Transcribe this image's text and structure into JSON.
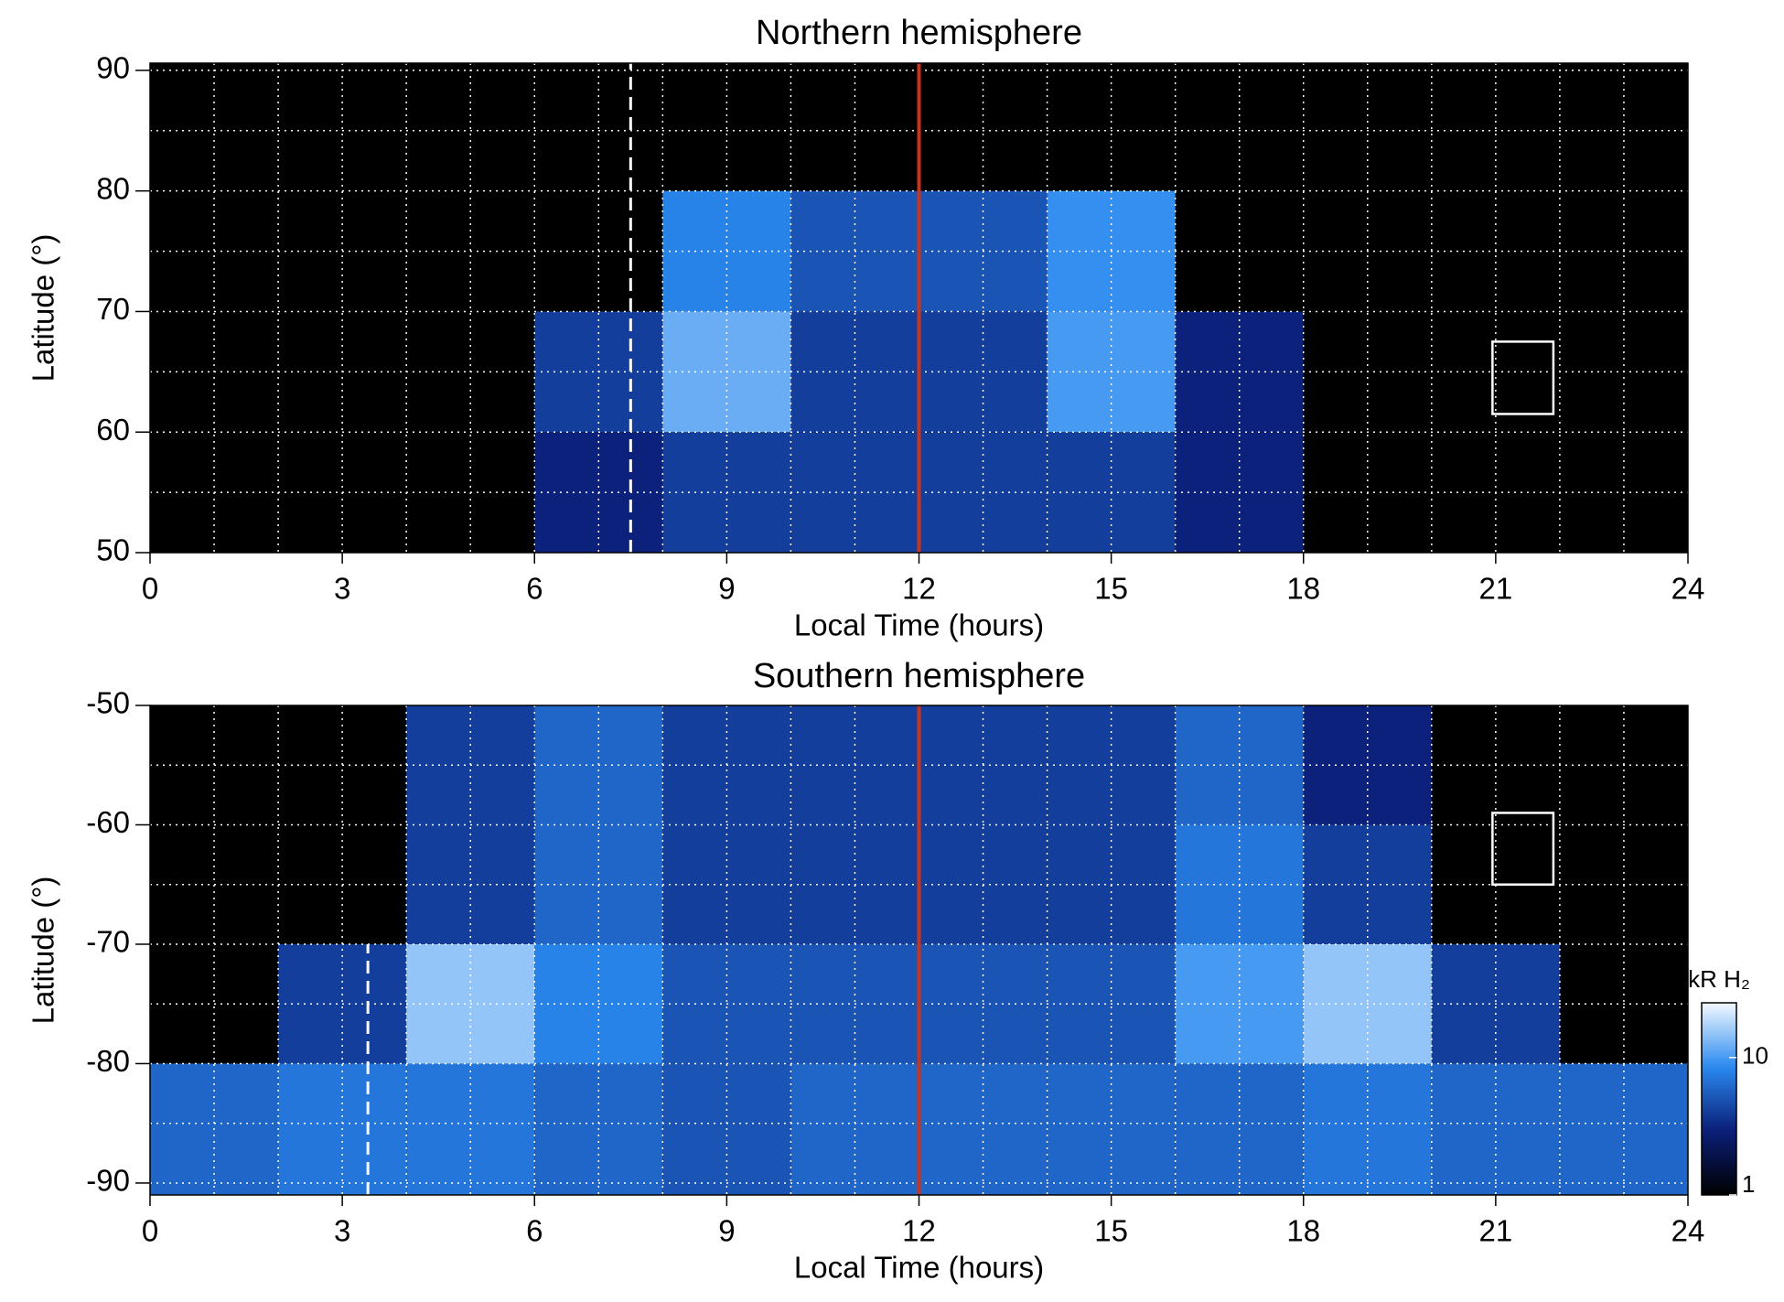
{
  "chart_data": [
    {
      "type": "heatmap",
      "title": "Northern hemisphere",
      "xlabel": "Local Time (hours)",
      "ylabel": "Latitude (°)",
      "xlim": [
        0,
        24
      ],
      "ylim": [
        50,
        90.6
      ],
      "xticks": [
        0,
        3,
        6,
        9,
        12,
        15,
        18,
        21,
        24
      ],
      "yticks": [
        50,
        60,
        70,
        80,
        90
      ],
      "xgridlines": [
        1,
        2,
        3,
        4,
        5,
        6,
        7,
        8,
        9,
        10,
        11,
        12,
        13,
        14,
        15,
        16,
        17,
        18,
        19,
        20,
        21,
        22,
        23
      ],
      "ygridlines": [
        55,
        60,
        65,
        70,
        75,
        80,
        85,
        90
      ],
      "xbins": [
        0,
        2,
        4,
        6,
        8,
        10,
        12,
        14,
        16,
        18,
        20,
        22,
        24
      ],
      "ybins": [
        50,
        60,
        70,
        80,
        90.6
      ],
      "z": [
        [
          null,
          null,
          null,
          3,
          4,
          4,
          4,
          4,
          3,
          null,
          null,
          null
        ],
        [
          null,
          null,
          null,
          4,
          12,
          4,
          4,
          10,
          3,
          null,
          null,
          null
        ],
        [
          null,
          null,
          null,
          null,
          8,
          5,
          5,
          9,
          null,
          null,
          null,
          null
        ],
        [
          null,
          null,
          null,
          null,
          null,
          null,
          null,
          null,
          null,
          null,
          null,
          null
        ]
      ],
      "colormap": [
        "#000000",
        "#0a1e78",
        "#2a8af0",
        "#f4faff"
      ],
      "clim": [
        1,
        25
      ],
      "log": true,
      "background": "#000000",
      "vlines": [
        {
          "x": 12,
          "y": [
            50,
            90.6
          ],
          "color": "#c8341c",
          "dashed": false
        },
        {
          "x": 7.5,
          "y": [
            50,
            90.6
          ],
          "color": "#ffffff",
          "dashed": true
        }
      ],
      "boxes": [
        {
          "x": [
            20.95,
            21.9
          ],
          "y": [
            61.5,
            67.5
          ],
          "color": "#ffffff"
        }
      ]
    },
    {
      "type": "heatmap",
      "title": "Southern hemisphere",
      "xlabel": "Local Time (hours)",
      "ylabel": "Latitude (°)",
      "xlim": [
        0,
        24
      ],
      "ylim": [
        -91,
        -50
      ],
      "xticks": [
        0,
        3,
        6,
        9,
        12,
        15,
        18,
        21,
        24
      ],
      "yticks": [
        -50,
        -60,
        -70,
        -80,
        -90
      ],
      "xgridlines": [
        1,
        2,
        3,
        4,
        5,
        6,
        7,
        8,
        9,
        10,
        11,
        12,
        13,
        14,
        15,
        16,
        17,
        18,
        19,
        20,
        21,
        22,
        23
      ],
      "ygridlines": [
        -55,
        -60,
        -65,
        -70,
        -75,
        -80,
        -85,
        -90
      ],
      "xbins": [
        0,
        2,
        4,
        6,
        8,
        10,
        12,
        14,
        16,
        18,
        20,
        22,
        24
      ],
      "ybins": [
        -91,
        -80,
        -70,
        -60,
        -50
      ],
      "z": [
        [
          6,
          7,
          7,
          6,
          5,
          6,
          6,
          6,
          6,
          7,
          6,
          6
        ],
        [
          null,
          4,
          15,
          8,
          5,
          5,
          5,
          5,
          10,
          15,
          4,
          null
        ],
        [
          null,
          null,
          4,
          6,
          4,
          4,
          4,
          4,
          7,
          4,
          null,
          null
        ],
        [
          null,
          null,
          4,
          6,
          4,
          4,
          4,
          4,
          6,
          3,
          null,
          null
        ]
      ],
      "colormap": [
        "#000000",
        "#0a1e78",
        "#2a8af0",
        "#f4faff"
      ],
      "clim": [
        1,
        25
      ],
      "log": true,
      "background": "#000000",
      "vlines": [
        {
          "x": 12,
          "y": [
            -91,
            -50
          ],
          "color": "#c8341c",
          "dashed": false
        },
        {
          "x": 3.4,
          "y": [
            -91,
            -70
          ],
          "color": "#ffffff",
          "dashed": true
        }
      ],
      "boxes": [
        {
          "x": [
            20.95,
            21.9
          ],
          "y": [
            -65,
            -59
          ],
          "color": "#ffffff"
        }
      ],
      "colorbar": {
        "label": "kR H₂",
        "ticks": [
          1,
          10
        ]
      }
    }
  ]
}
